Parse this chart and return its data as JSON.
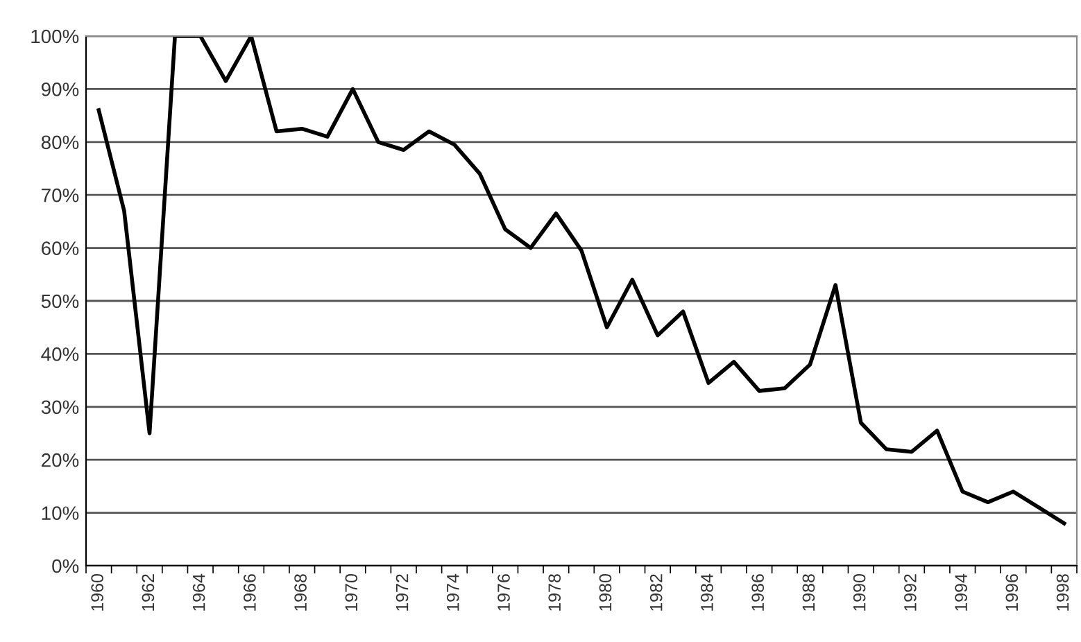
{
  "chart_data": {
    "type": "line",
    "categories": [
      "1960",
      null,
      "1962",
      null,
      "1964",
      null,
      "1966",
      null,
      "1968",
      null,
      "1970",
      null,
      "1972",
      null,
      "1974",
      null,
      "1976",
      null,
      "1978",
      null,
      "1980",
      null,
      "1982",
      null,
      "1984",
      null,
      "1986",
      null,
      "1988",
      null,
      "1990",
      null,
      "1992",
      null,
      "1994",
      null,
      "1996",
      null,
      "1998"
    ],
    "series": [
      {
        "color": "#000000",
        "values": [
          86,
          67,
          25,
          100,
          100,
          91.5,
          100,
          82,
          82.5,
          81,
          90,
          80,
          78.5,
          82,
          79.5,
          74,
          63.5,
          60,
          66.5,
          59.5,
          45,
          54,
          43.5,
          48,
          34.5,
          38.5,
          33,
          33.5,
          38,
          53,
          27,
          22,
          21.5,
          25.5,
          14,
          12,
          14,
          11,
          8
        ]
      }
    ],
    "ylim": [
      0,
      100
    ],
    "yticks": [
      {
        "value": 0,
        "label": "0%"
      },
      {
        "value": 10,
        "label": "10%"
      },
      {
        "value": 20,
        "label": "20%"
      },
      {
        "value": 30,
        "label": "30%"
      },
      {
        "value": 40,
        "label": "40%"
      },
      {
        "value": 50,
        "label": "50%"
      },
      {
        "value": 60,
        "label": "60%"
      },
      {
        "value": 70,
        "label": "70%"
      },
      {
        "value": 80,
        "label": "80%"
      },
      {
        "value": 90,
        "label": "90%"
      },
      {
        "value": 100,
        "label": "100%"
      }
    ],
    "grid": "y",
    "legend": false,
    "marker": "none",
    "line_style": "solid"
  }
}
